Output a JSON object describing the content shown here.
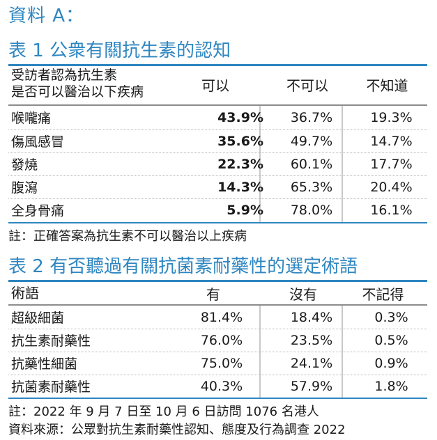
{
  "heading": "資料 A：",
  "table1": {
    "title": "表 1 公衆有關抗生素的認知",
    "header_label_line1": "受訪者認為抗生素",
    "header_label_line2": "是否可以醫治以下疾病",
    "columns": [
      "可以",
      "不可以",
      "不知道"
    ],
    "rows": [
      {
        "label": "喉嚨痛",
        "values": [
          "43.9%",
          "36.7%",
          "19.3%"
        ]
      },
      {
        "label": "傷風感冒",
        "values": [
          "35.6%",
          "49.7%",
          "14.7%"
        ]
      },
      {
        "label": "發燒",
        "values": [
          "22.3%",
          "60.1%",
          "17.7%"
        ]
      },
      {
        "label": "腹瀉",
        "values": [
          "14.3%",
          "65.3%",
          "20.4%"
        ]
      },
      {
        "label": "全身骨痛",
        "values": [
          "5.9%",
          "78.0%",
          "16.1%"
        ]
      }
    ],
    "note": "註：正確答案為抗生素不可以醫治以上疾病"
  },
  "table2": {
    "title": "表 2 有否聽過有關抗菌素耐藥性的選定術語",
    "header_label": "術語",
    "columns": [
      "有",
      "沒有",
      "不記得"
    ],
    "rows": [
      {
        "label": "超級細菌",
        "values": [
          "81.4%",
          "18.4%",
          "0.3%"
        ]
      },
      {
        "label": "抗生素耐藥性",
        "values": [
          "76.0%",
          "23.5%",
          "0.5%"
        ]
      },
      {
        "label": "抗藥性細菌",
        "values": [
          "75.0%",
          "24.1%",
          "0.9%"
        ]
      },
      {
        "label": "抗菌素耐藥性",
        "values": [
          "40.3%",
          "57.9%",
          "1.8%"
        ]
      }
    ]
  },
  "footnote": "註：2022 年 9 月 7 日至 10 月 6 日訪問 1076 名港人",
  "source": "資料來源：公眾對抗生素耐藥性認知、態度及行為調查 2022"
}
